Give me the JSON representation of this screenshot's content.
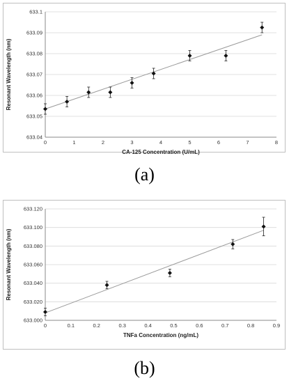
{
  "chart_data": [
    {
      "type": "scatter",
      "xlabel": "CA-125 Concentration (U/mL)",
      "ylabel": "Resonant Wavelength (nm)",
      "xlim": [
        0,
        8
      ],
      "ylim": [
        633.04,
        633.1
      ],
      "x_ticks": [
        "0",
        "1",
        "2",
        "3",
        "4",
        "5",
        "6",
        "7",
        "8"
      ],
      "y_ticks": [
        "633.04",
        "633.05",
        "633.06",
        "633.07",
        "633.08",
        "633.09",
        "633.1"
      ],
      "grid": "horizontal",
      "series": [
        {
          "marker": "diamond",
          "points": [
            {
              "x": 0,
              "y": 633.0535,
              "err": 0.0025
            },
            {
              "x": 0.75,
              "y": 633.057,
              "err": 0.0025
            },
            {
              "x": 1.5,
              "y": 633.0615,
              "err": 0.0025
            },
            {
              "x": 2.25,
              "y": 633.0615,
              "err": 0.0025
            },
            {
              "x": 3,
              "y": 633.066,
              "err": 0.0025
            },
            {
              "x": 3.75,
              "y": 633.0705,
              "err": 0.0025
            },
            {
              "x": 5,
              "y": 633.079,
              "err": 0.0025
            },
            {
              "x": 6.25,
              "y": 633.079,
              "err": 0.0025
            },
            {
              "x": 7.5,
              "y": 633.0925,
              "err": 0.0025
            }
          ]
        }
      ],
      "trendline": {
        "x": [
          0,
          7.5
        ],
        "y": [
          633.0535,
          633.089
        ]
      },
      "caption": "(a)"
    },
    {
      "type": "scatter",
      "xlabel": "TNFa Concentration (ng/mL)",
      "ylabel": "Resonant Wavelength (nm)",
      "xlim": [
        0,
        0.9
      ],
      "ylim": [
        633.0,
        633.12
      ],
      "x_ticks": [
        "0",
        "0.1",
        "0.2",
        "0.3",
        "0.4",
        "0.5",
        "0.6",
        "0.7",
        "0.8",
        "0.9"
      ],
      "y_ticks": [
        "633.000",
        "633.020",
        "633.040",
        "633.060",
        "633.080",
        "633.100",
        "633.120"
      ],
      "grid": "horizontal",
      "series": [
        {
          "marker": "diamond",
          "points": [
            {
              "x": 0,
              "y": 633.009,
              "err": 0.004
            },
            {
              "x": 0.24,
              "y": 633.038,
              "err": 0.004
            },
            {
              "x": 0.485,
              "y": 633.051,
              "err": 0.004
            },
            {
              "x": 0.73,
              "y": 633.082,
              "err": 0.005
            },
            {
              "x": 0.85,
              "y": 633.101,
              "err": 0.01
            }
          ]
        }
      ],
      "trendline": {
        "x": [
          0,
          0.85
        ],
        "y": [
          633.008,
          633.097
        ]
      },
      "caption": "(b)"
    }
  ]
}
